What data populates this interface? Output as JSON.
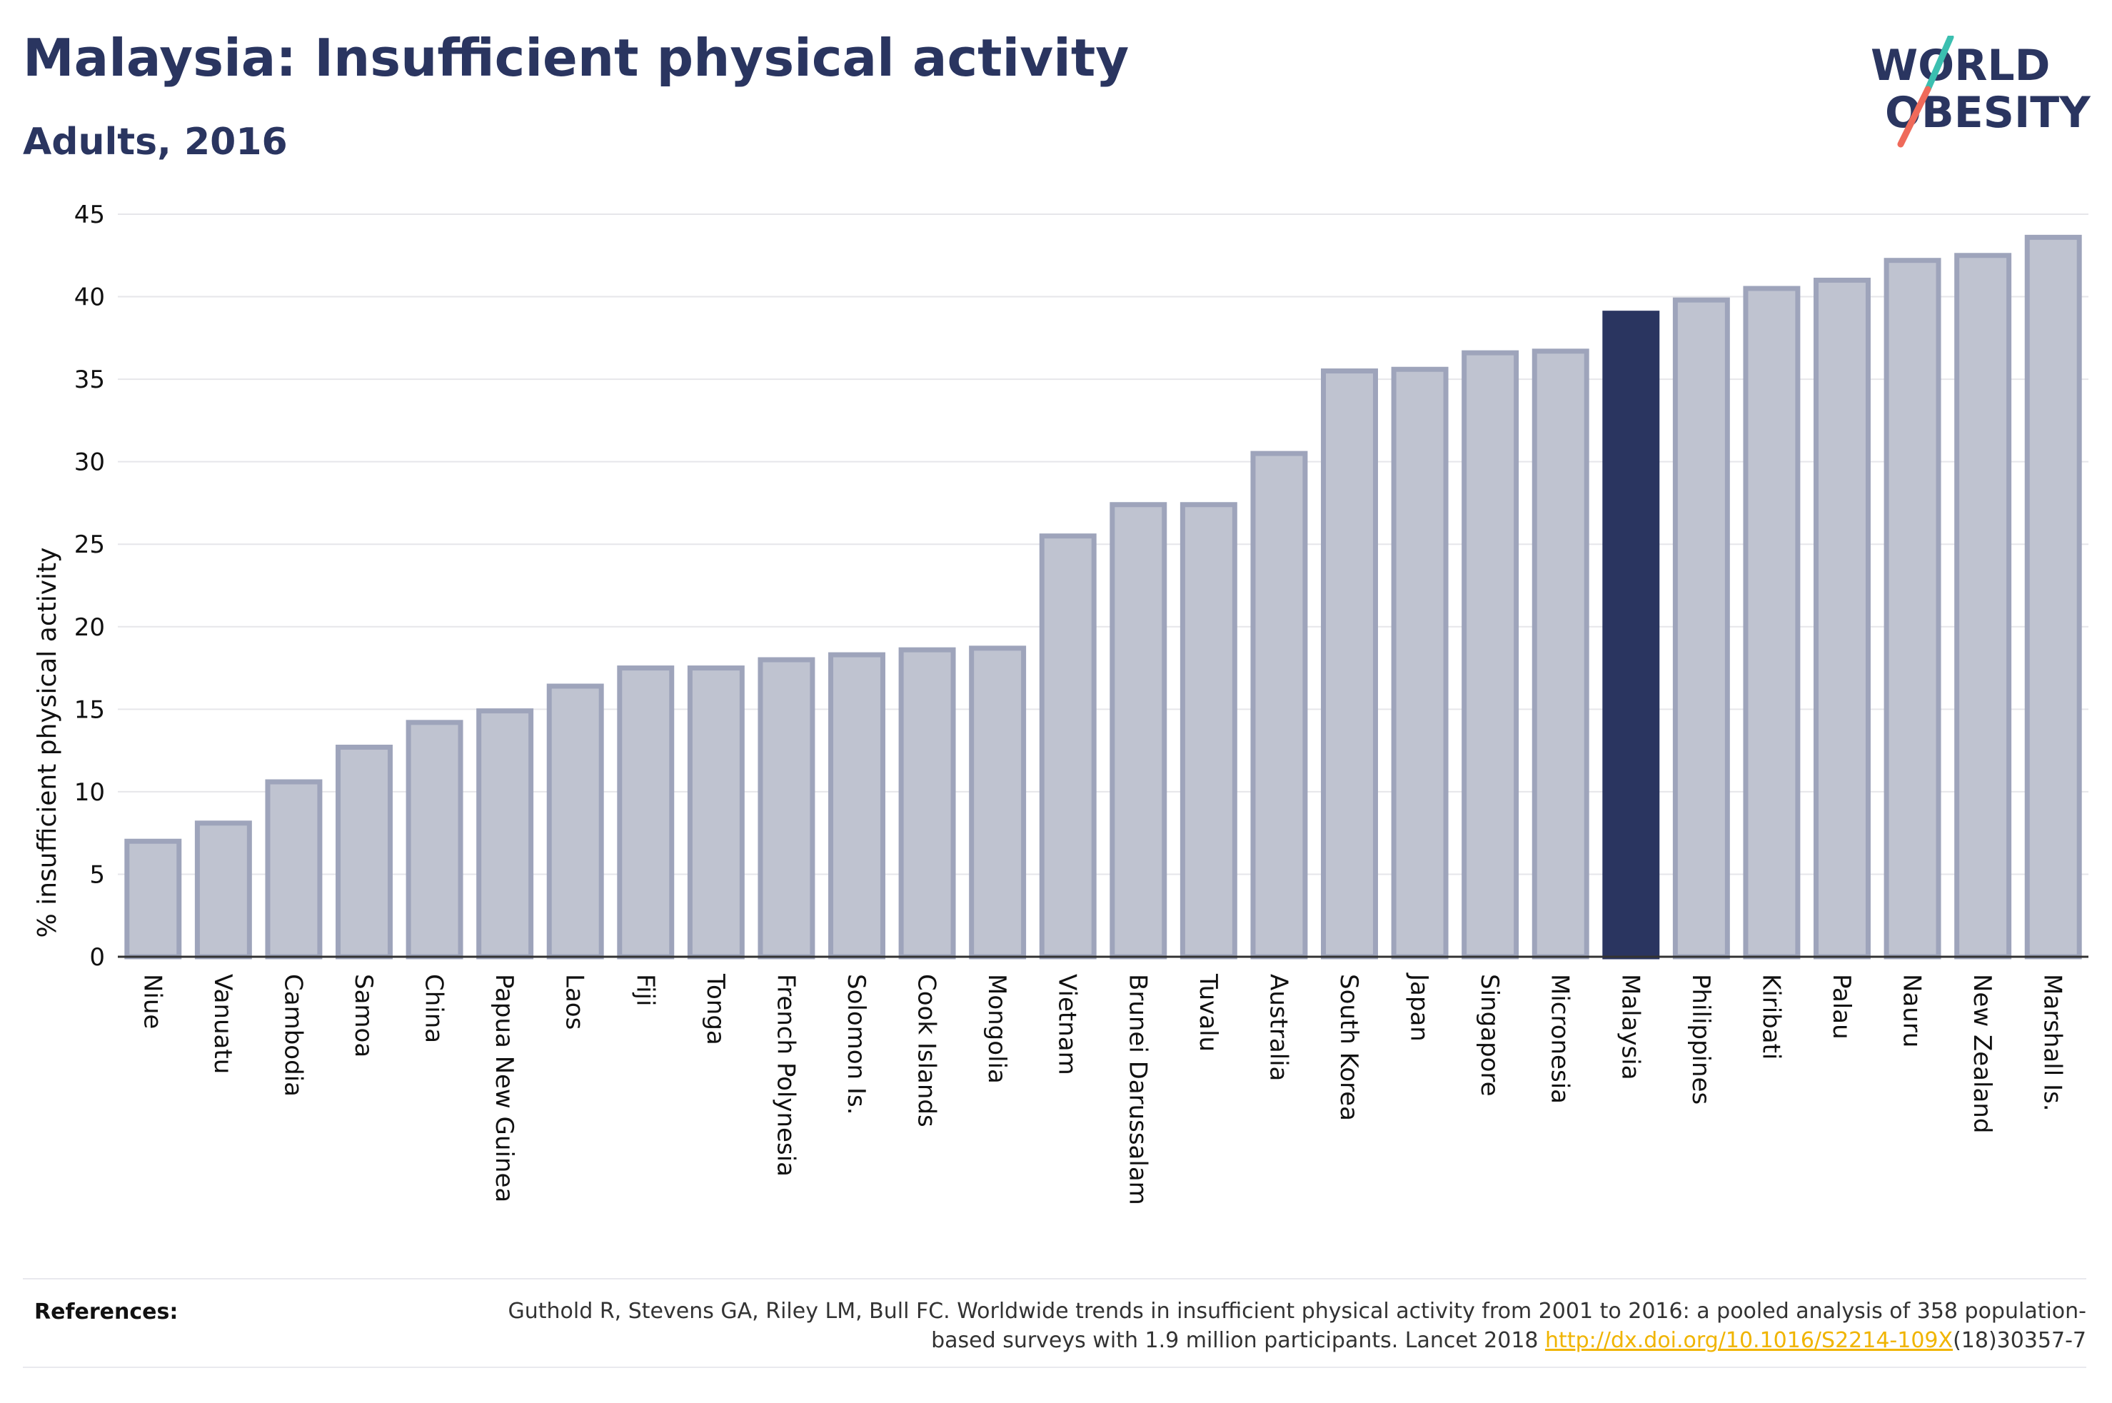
{
  "header": {
    "title": "Malaysia: Insufficient physical activity",
    "subtitle": "Adults, 2016"
  },
  "logo": {
    "line1": "WORLD",
    "line2": "OBESITY"
  },
  "colors": {
    "highlight": "#2a3560",
    "bar_fill": "#bfc3d0",
    "bar_stroke": "#9ea4bb",
    "text": "#2a3560",
    "link": "#f0b400"
  },
  "chart_data": {
    "type": "bar",
    "ylabel": "% insufficient physical activity",
    "xlabel": "",
    "ylim": [
      0,
      45
    ],
    "yticks": [
      0,
      5,
      10,
      15,
      20,
      25,
      30,
      35,
      40,
      45
    ],
    "grid": true,
    "highlight": "Malaysia",
    "categories": [
      "Niue",
      "Vanuatu",
      "Cambodia",
      "Samoa",
      "China",
      "Papua New Guinea",
      "Laos",
      "Fiji",
      "Tonga",
      "French Polynesia",
      "Solomon Is.",
      "Cook Islands",
      "Mongolia",
      "Vietnam",
      "Brunei Darussalam",
      "Tuvalu",
      "Australia",
      "South Korea",
      "Japan",
      "Singapore",
      "Micronesia",
      "Malaysia",
      "Philippines",
      "Kiribati",
      "Palau",
      "Nauru",
      "New Zealand",
      "Marshall Is."
    ],
    "values": [
      7.0,
      8.1,
      10.6,
      12.7,
      14.2,
      14.9,
      16.4,
      17.5,
      17.5,
      18.0,
      18.3,
      18.6,
      18.7,
      25.5,
      27.4,
      27.4,
      30.5,
      35.5,
      35.6,
      36.6,
      36.7,
      39.0,
      39.8,
      40.5,
      41.0,
      42.2,
      42.5,
      43.6
    ]
  },
  "references": {
    "label": "References:",
    "text_before": "Guthold R, Stevens GA, Riley LM, Bull FC. Worldwide trends in insufficient physical activity from 2001 to 2016: a pooled analysis of 358 population-based surveys with 1.9 million participants. Lancet 2018 ",
    "link": "http://dx.doi.org/10.1016/S2214-109X",
    "text_after": "(18)30357-7"
  }
}
